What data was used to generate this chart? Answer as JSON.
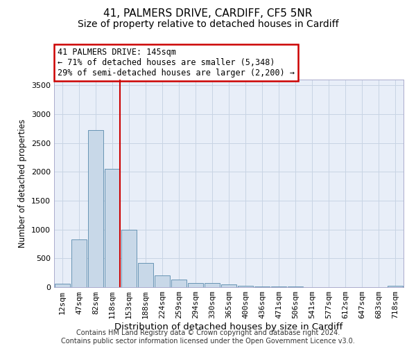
{
  "title_line1": "41, PALMERS DRIVE, CARDIFF, CF5 5NR",
  "title_line2": "Size of property relative to detached houses in Cardiff",
  "xlabel": "Distribution of detached houses by size in Cardiff",
  "ylabel": "Number of detached properties",
  "categories": [
    "12sqm",
    "47sqm",
    "82sqm",
    "118sqm",
    "153sqm",
    "188sqm",
    "224sqm",
    "259sqm",
    "294sqm",
    "330sqm",
    "365sqm",
    "400sqm",
    "436sqm",
    "471sqm",
    "506sqm",
    "541sqm",
    "577sqm",
    "612sqm",
    "647sqm",
    "683sqm",
    "718sqm"
  ],
  "values": [
    60,
    830,
    2720,
    2050,
    1000,
    420,
    210,
    130,
    75,
    75,
    50,
    30,
    10,
    10,
    10,
    0,
    0,
    0,
    0,
    0,
    30
  ],
  "bar_color": "#c8d8e8",
  "bar_edge_color": "#5588aa",
  "red_line_bar_index": 3,
  "annotation_line1": "41 PALMERS DRIVE: 145sqm",
  "annotation_line2": "← 71% of detached houses are smaller (5,348)",
  "annotation_line3": "29% of semi-detached houses are larger (2,200) →",
  "annotation_box_color": "#ffffff",
  "annotation_box_edge": "#cc0000",
  "ylim": [
    0,
    3600
  ],
  "yticks": [
    0,
    500,
    1000,
    1500,
    2000,
    2500,
    3000,
    3500
  ],
  "grid_color": "#c8d4e4",
  "background_color": "#e8eef8",
  "footer_line1": "Contains HM Land Registry data © Crown copyright and database right 2024.",
  "footer_line2": "Contains public sector information licensed under the Open Government Licence v3.0.",
  "title_fontsize": 11,
  "subtitle_fontsize": 10,
  "xlabel_fontsize": 9.5,
  "ylabel_fontsize": 8.5,
  "tick_fontsize": 8,
  "annotation_fontsize": 8.5,
  "footer_fontsize": 7
}
